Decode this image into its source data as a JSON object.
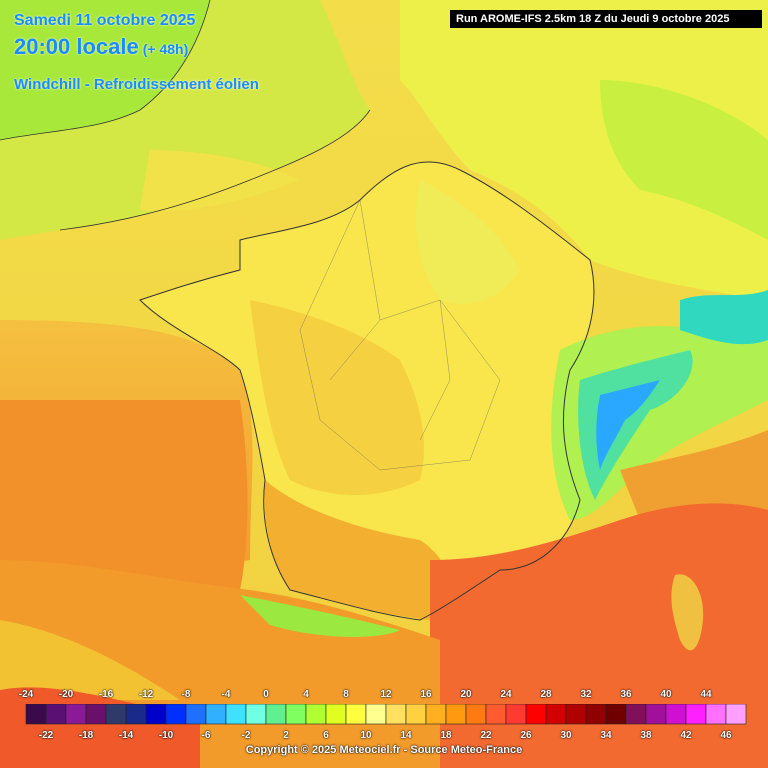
{
  "header": {
    "date": "Samedi 11 octobre 2025",
    "time": "20:00 locale",
    "lead": "(+ 48h)",
    "field": "Windchill - Refroidissement éolien",
    "run": "Run AROME-IFS 2.5km 18 Z du Jeudi 9 octobre 2025"
  },
  "legend": {
    "top_labels": [
      "-24",
      "-20",
      "-16",
      "-12",
      "-8",
      "-4",
      "0",
      "4",
      "8",
      "12",
      "16",
      "20",
      "24",
      "28",
      "32",
      "36",
      "40",
      "44"
    ],
    "bottom_labels": [
      "-22",
      "-18",
      "-14",
      "-10",
      "-6",
      "-2",
      "2",
      "6",
      "10",
      "14",
      "18",
      "22",
      "26",
      "30",
      "34",
      "38",
      "42",
      "46"
    ],
    "colors": [
      "#3a0a4a",
      "#5a0f73",
      "#8a1a96",
      "#6a0f6a",
      "#303a6a",
      "#1a2a8a",
      "#0000cc",
      "#0030ff",
      "#2070ff",
      "#30b0ff",
      "#40e0ff",
      "#70ffe0",
      "#60f090",
      "#80ff60",
      "#b0ff30",
      "#e0ff20",
      "#ffff40",
      "#ffff90",
      "#ffe060",
      "#ffd040",
      "#ffb020",
      "#ff9a10",
      "#ff7a10",
      "#ff5a30",
      "#ff3a30",
      "#ff0000",
      "#d00000",
      "#b00000",
      "#900000",
      "#700000",
      "#80105a",
      "#a0109a",
      "#d010d0",
      "#ff20ff",
      "#ff70ff",
      "#ffa0ff"
    ]
  },
  "copyright": "Copyright © 2025 Meteociel.fr - Source Meteo-France",
  "colors": {
    "sea_north": "#f0d43a",
    "sea_atlantic": "#f4a030",
    "sea_med": "#f26a30",
    "land_warm": "#f7e64a",
    "land_cool": "#c8f03a",
    "alps": "#20d0a0",
    "title_blue": "#1a8cff"
  }
}
